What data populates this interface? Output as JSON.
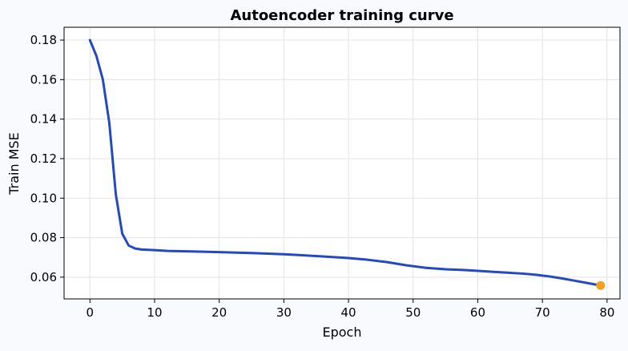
{
  "chart_data": {
    "type": "line",
    "title": "Autoencoder training curve",
    "xlabel": "Epoch",
    "ylabel": "Train MSE",
    "xlim": [
      -4,
      82
    ],
    "ylim": [
      0.049,
      0.1865
    ],
    "xticks": [
      0,
      10,
      20,
      30,
      40,
      50,
      60,
      70,
      80
    ],
    "yticks": [
      0.06,
      0.08,
      0.1,
      0.12,
      0.14,
      0.16,
      0.18
    ],
    "xtick_labels": [
      "0",
      "10",
      "20",
      "30",
      "40",
      "50",
      "60",
      "70",
      "80"
    ],
    "ytick_labels": [
      "0.06",
      "0.08",
      "0.10",
      "0.12",
      "0.14",
      "0.16",
      "0.18"
    ],
    "grid": true,
    "line_color": "#2449c1",
    "marker_color": "#f5a020",
    "series": [
      {
        "x": [
          0,
          1,
          2,
          3,
          4,
          5,
          6,
          7,
          8,
          10,
          12,
          15,
          20,
          25,
          30,
          35,
          40,
          43,
          46,
          49,
          52,
          55,
          58,
          61,
          64,
          67,
          69,
          71,
          73,
          75,
          77,
          79
        ],
        "values": [
          0.18,
          0.172,
          0.16,
          0.138,
          0.102,
          0.082,
          0.076,
          0.0745,
          0.074,
          0.0737,
          0.0733,
          0.0731,
          0.0727,
          0.0722,
          0.0716,
          0.0707,
          0.0697,
          0.0688,
          0.0676,
          0.066,
          0.0647,
          0.064,
          0.0636,
          0.063,
          0.0624,
          0.0618,
          0.0612,
          0.0604,
          0.0594,
          0.0582,
          0.057,
          0.0558
        ]
      }
    ],
    "highlight_point": {
      "x": 79,
      "y": 0.0558
    }
  }
}
